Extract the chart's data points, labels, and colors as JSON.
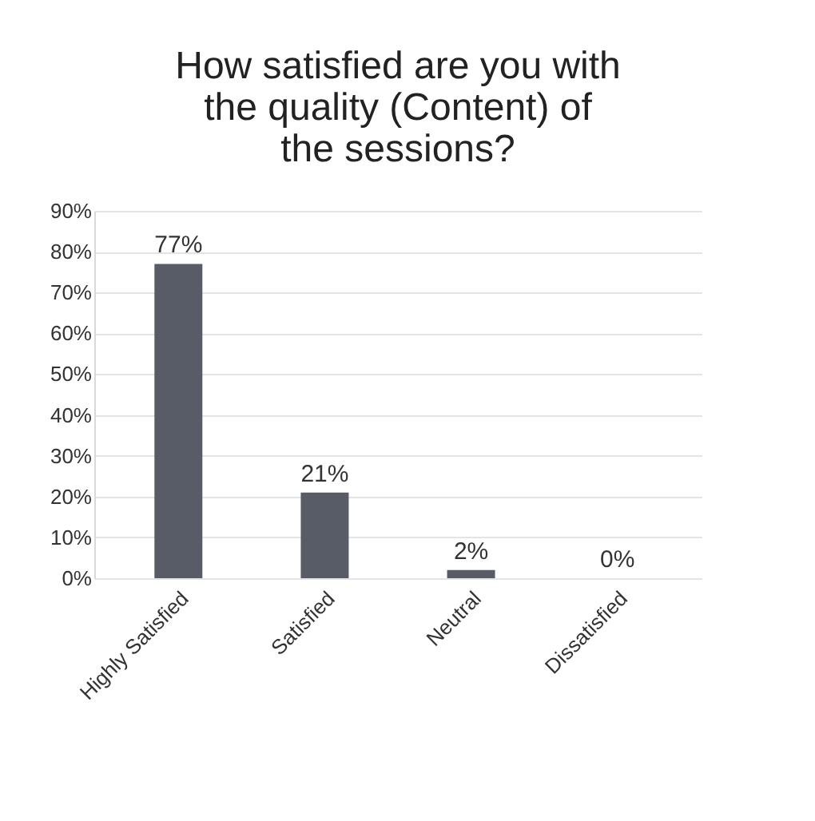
{
  "chart_data": {
    "type": "bar",
    "title": "How satisfied are you with the quality (Content) of the sessions?",
    "categories": [
      "Highly Satisfied",
      "Satisfied",
      "Neutral",
      "Dissatisfied"
    ],
    "values": [
      77,
      21,
      2,
      0
    ],
    "value_labels": [
      "77%",
      "21%",
      "2%",
      "0%"
    ],
    "color": "#575c66",
    "ylim": [
      0,
      90
    ],
    "yticks": [
      {
        "value": 0,
        "label": "0%"
      },
      {
        "value": 10,
        "label": "10%"
      },
      {
        "value": 20,
        "label": "20%"
      },
      {
        "value": 30,
        "label": "30%"
      },
      {
        "value": 40,
        "label": "40%"
      },
      {
        "value": 50,
        "label": "50%"
      },
      {
        "value": 60,
        "label": "60%"
      },
      {
        "value": 70,
        "label": "70%"
      },
      {
        "value": 80,
        "label": "80%"
      },
      {
        "value": 90,
        "label": "90%"
      }
    ],
    "grid": "y"
  }
}
